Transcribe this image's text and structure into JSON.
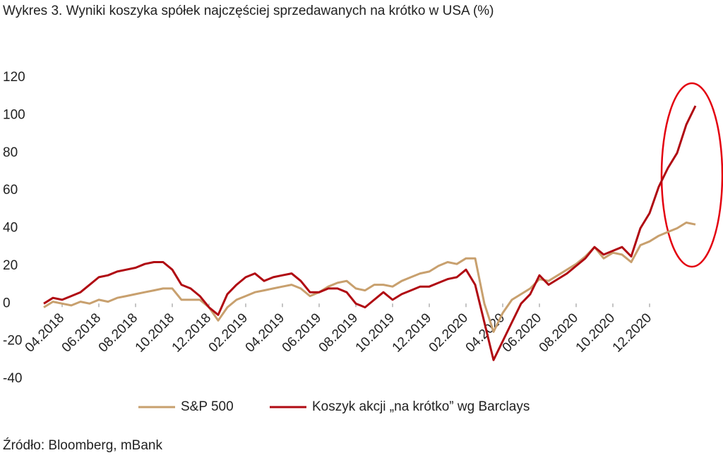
{
  "chart_data": {
    "type": "line",
    "title": "Wykres 3. Wyniki koszyka spółek najczęściej sprzedawanych na krótko w USA (%)",
    "source": "Źródło: Bloomberg, mBank",
    "categories": [
      null,
      null,
      "04.2018",
      null,
      null,
      null,
      "06.2018",
      null,
      null,
      null,
      "08.2018",
      null,
      null,
      null,
      "10.2018",
      null,
      null,
      null,
      "12.2018",
      null,
      null,
      null,
      "02.2019",
      null,
      null,
      null,
      "04.2019",
      null,
      null,
      null,
      "06.2019",
      null,
      null,
      null,
      "08.2019",
      null,
      null,
      null,
      "10.2019",
      null,
      null,
      null,
      "12.2019",
      null,
      null,
      null,
      "02.2020",
      null,
      null,
      null,
      "04.2020",
      null,
      null,
      null,
      "06.2020",
      null,
      null,
      null,
      "08.2020",
      null,
      null,
      null,
      "10.2020",
      null,
      null,
      null,
      "12.2020",
      null,
      null,
      null,
      null,
      null
    ],
    "series": [
      {
        "name": "S&P 500",
        "color": "#c8a06e",
        "values": [
          -2,
          1,
          0,
          -1,
          1,
          0,
          2,
          1,
          3,
          4,
          5,
          6,
          7,
          8,
          8,
          2,
          2,
          2,
          -2,
          -9,
          -2,
          2,
          4,
          6,
          7,
          8,
          9,
          10,
          8,
          4,
          6,
          9,
          11,
          12,
          8,
          7,
          10,
          10,
          9,
          12,
          14,
          16,
          17,
          20,
          22,
          21,
          24,
          24,
          0,
          -15,
          -5,
          2,
          5,
          8,
          13,
          12,
          15,
          18,
          21,
          25,
          30,
          24,
          27,
          26,
          22,
          31,
          33,
          36,
          38,
          40,
          43,
          42
        ]
      },
      {
        "name": "Koszyk akcji „na krótko” wg Barclays",
        "color": "#b00a12",
        "values": [
          0,
          3,
          2,
          4,
          6,
          10,
          14,
          15,
          17,
          18,
          19,
          21,
          22,
          22,
          18,
          10,
          8,
          4,
          -2,
          -6,
          5,
          10,
          14,
          16,
          12,
          14,
          15,
          16,
          12,
          6,
          6,
          8,
          8,
          6,
          0,
          -2,
          2,
          6,
          2,
          5,
          7,
          9,
          9,
          11,
          13,
          14,
          18,
          10,
          -10,
          -30,
          -20,
          -10,
          0,
          5,
          15,
          10,
          13,
          16,
          20,
          24,
          30,
          26,
          28,
          30,
          25,
          40,
          48,
          62,
          72,
          80,
          95,
          105
        ]
      }
    ],
    "ylim": [
      -40,
      120
    ],
    "yticks": [
      -40,
      -20,
      0,
      20,
      40,
      60,
      80,
      100,
      120
    ],
    "legend": "bottom"
  }
}
